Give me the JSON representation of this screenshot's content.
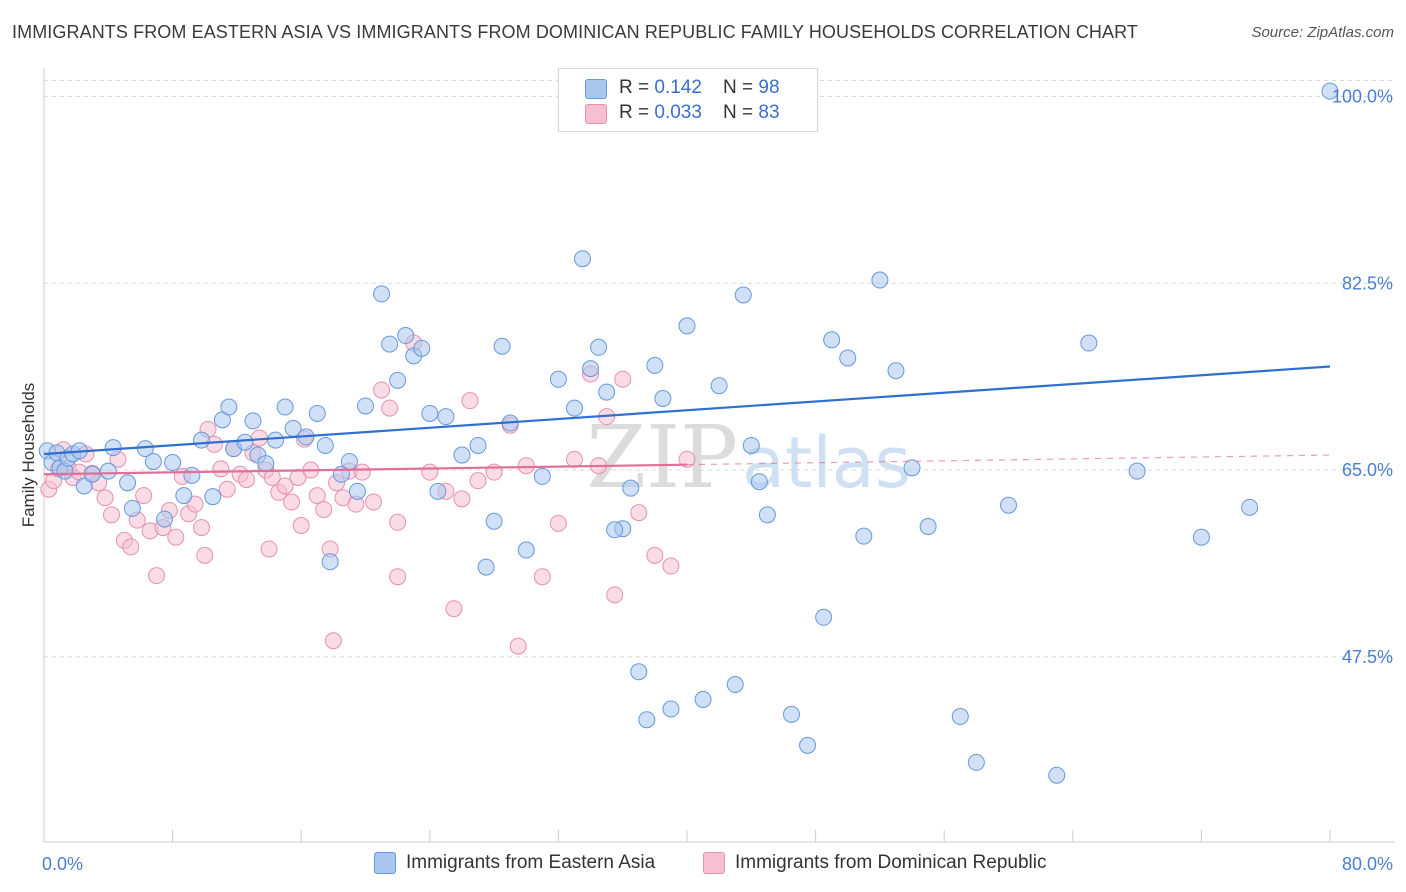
{
  "title": "IMMIGRANTS FROM EASTERN ASIA VS IMMIGRANTS FROM DOMINICAN REPUBLIC FAMILY HOUSEHOLDS CORRELATION CHART",
  "source": "Source: ZipAtlas.com",
  "legend_top": {
    "series1": {
      "r_label": "R = ",
      "r_value": "0.142",
      "n_label": "N = ",
      "n_value": "98"
    },
    "series2": {
      "r_label": "R = ",
      "r_value": "0.033",
      "n_label": "N = ",
      "n_value": "83"
    }
  },
  "legend_bottom": {
    "series1": "Immigrants from Eastern Asia",
    "series2": "Immigrants from Dominican Republic"
  },
  "colors": {
    "blue": "#6699dd",
    "blue_fill": "#a9c6ee",
    "blue_line": "#2f6fd0",
    "pink": "#e890b0",
    "pink_fill": "#f6bfd2",
    "pink_line": "#e0709a"
  },
  "chart_data": {
    "type": "scatter",
    "xlabel": "",
    "ylabel": "Family Households",
    "xlim": [
      0,
      80
    ],
    "ylim": [
      30,
      100
    ],
    "x_tick_labels": [
      "0.0%",
      "80.0%"
    ],
    "y_ticks": [
      47.5,
      65.0,
      82.5,
      100.0
    ],
    "y_tick_labels": [
      "47.5%",
      "65.0%",
      "82.5%",
      "100.0%"
    ],
    "watermark": "ZIPatlas",
    "series": [
      {
        "name": "Immigrants from Eastern Asia",
        "trend": {
          "x": [
            0,
            80
          ],
          "y": [
            66.5,
            74.7
          ]
        },
        "points": [
          [
            0.2,
            66.8
          ],
          [
            0.5,
            65.7
          ],
          [
            0.8,
            66.6
          ],
          [
            1.0,
            65.2
          ],
          [
            1.3,
            64.9
          ],
          [
            1.5,
            66.1
          ],
          [
            1.8,
            66.5
          ],
          [
            2.2,
            66.8
          ],
          [
            2.5,
            63.5
          ],
          [
            3.0,
            64.6
          ],
          [
            4.0,
            64.9
          ],
          [
            4.3,
            67.1
          ],
          [
            5.2,
            63.8
          ],
          [
            5.5,
            61.4
          ],
          [
            6.3,
            67.0
          ],
          [
            6.8,
            65.8
          ],
          [
            7.5,
            60.4
          ],
          [
            8.0,
            65.7
          ],
          [
            8.7,
            62.6
          ],
          [
            9.2,
            64.5
          ],
          [
            9.8,
            67.8
          ],
          [
            10.5,
            62.5
          ],
          [
            11.1,
            69.7
          ],
          [
            11.5,
            70.9
          ],
          [
            11.8,
            67.0
          ],
          [
            12.5,
            67.6
          ],
          [
            13.0,
            69.6
          ],
          [
            13.3,
            66.4
          ],
          [
            13.8,
            65.6
          ],
          [
            14.4,
            67.8
          ],
          [
            15.0,
            70.9
          ],
          [
            15.5,
            68.9
          ],
          [
            16.3,
            68.1
          ],
          [
            17.0,
            70.3
          ],
          [
            17.5,
            67.3
          ],
          [
            17.8,
            56.4
          ],
          [
            18.5,
            64.6
          ],
          [
            19.0,
            65.8
          ],
          [
            19.5,
            63.0
          ],
          [
            20.0,
            71.0
          ],
          [
            21.0,
            81.5
          ],
          [
            21.5,
            76.8
          ],
          [
            22.0,
            73.4
          ],
          [
            22.5,
            77.6
          ],
          [
            23.0,
            75.7
          ],
          [
            23.5,
            76.4
          ],
          [
            24.0,
            70.3
          ],
          [
            24.5,
            63.0
          ],
          [
            25.0,
            70.0
          ],
          [
            26.0,
            66.4
          ],
          [
            27.0,
            67.3
          ],
          [
            27.5,
            55.9
          ],
          [
            28.0,
            60.2
          ],
          [
            28.5,
            76.6
          ],
          [
            29.0,
            69.4
          ],
          [
            30.0,
            57.5
          ],
          [
            31.0,
            64.4
          ],
          [
            32.0,
            73.5
          ],
          [
            33.0,
            70.8
          ],
          [
            33.5,
            84.8
          ],
          [
            34.0,
            74.5
          ],
          [
            34.5,
            76.5
          ],
          [
            35.0,
            72.3
          ],
          [
            36.0,
            59.5
          ],
          [
            36.5,
            63.3
          ],
          [
            37.0,
            46.1
          ],
          [
            37.5,
            41.6
          ],
          [
            38.0,
            74.8
          ],
          [
            38.5,
            71.7
          ],
          [
            39.0,
            42.6
          ],
          [
            40.0,
            78.5
          ],
          [
            41.0,
            43.5
          ],
          [
            42.0,
            72.9
          ],
          [
            43.0,
            44.9
          ],
          [
            43.5,
            81.4
          ],
          [
            44.0,
            67.3
          ],
          [
            44.5,
            63.9
          ],
          [
            45.0,
            60.8
          ],
          [
            46.5,
            42.1
          ],
          [
            47.5,
            39.2
          ],
          [
            48.5,
            51.2
          ],
          [
            49.0,
            77.2
          ],
          [
            50.0,
            75.5
          ],
          [
            51.0,
            58.8
          ],
          [
            52.0,
            82.8
          ],
          [
            53.0,
            74.3
          ],
          [
            54.0,
            65.2
          ],
          [
            55.0,
            59.7
          ],
          [
            57.0,
            41.9
          ],
          [
            58.0,
            37.6
          ],
          [
            60.0,
            61.7
          ],
          [
            63.0,
            36.4
          ],
          [
            65.0,
            76.9
          ],
          [
            68.0,
            64.9
          ],
          [
            72.0,
            58.7
          ],
          [
            75.0,
            61.5
          ],
          [
            80.0,
            100.5
          ],
          [
            35.5,
            59.4
          ]
        ]
      },
      {
        "name": "Immigrants from Dominican Republic",
        "trend": {
          "x": [
            0,
            40
          ],
          "y": [
            64.6,
            65.5
          ],
          "dashed_to": {
            "x": 80,
            "y": 66.4
          }
        },
        "points": [
          [
            0.3,
            63.2
          ],
          [
            0.6,
            64.0
          ],
          [
            0.9,
            65.1
          ],
          [
            1.2,
            66.9
          ],
          [
            1.5,
            65.2
          ],
          [
            1.8,
            64.3
          ],
          [
            2.2,
            64.8
          ],
          [
            2.6,
            66.5
          ],
          [
            3.0,
            64.7
          ],
          [
            3.4,
            63.8
          ],
          [
            3.8,
            62.4
          ],
          [
            4.2,
            60.8
          ],
          [
            4.6,
            66.0
          ],
          [
            5.0,
            58.4
          ],
          [
            5.4,
            57.8
          ],
          [
            5.8,
            60.3
          ],
          [
            6.2,
            62.6
          ],
          [
            6.6,
            59.3
          ],
          [
            7.0,
            55.1
          ],
          [
            7.4,
            59.6
          ],
          [
            7.8,
            61.2
          ],
          [
            8.2,
            58.7
          ],
          [
            8.6,
            64.4
          ],
          [
            9.0,
            60.9
          ],
          [
            9.4,
            61.8
          ],
          [
            9.8,
            59.6
          ],
          [
            10.2,
            68.8
          ],
          [
            10.6,
            67.4
          ],
          [
            11.0,
            65.1
          ],
          [
            11.4,
            63.2
          ],
          [
            11.8,
            67.0
          ],
          [
            12.2,
            64.6
          ],
          [
            12.6,
            64.1
          ],
          [
            13.0,
            66.6
          ],
          [
            13.4,
            68.0
          ],
          [
            13.8,
            65.0
          ],
          [
            14.2,
            64.3
          ],
          [
            14.6,
            62.9
          ],
          [
            15.0,
            63.5
          ],
          [
            15.4,
            62.0
          ],
          [
            15.8,
            64.3
          ],
          [
            16.2,
            67.9
          ],
          [
            16.6,
            65.0
          ],
          [
            17.0,
            62.6
          ],
          [
            17.4,
            61.3
          ],
          [
            17.8,
            57.6
          ],
          [
            18.2,
            63.8
          ],
          [
            18.6,
            62.4
          ],
          [
            19.0,
            64.9
          ],
          [
            19.4,
            61.8
          ],
          [
            19.8,
            64.8
          ],
          [
            20.5,
            62.0
          ],
          [
            21.0,
            72.5
          ],
          [
            21.5,
            70.8
          ],
          [
            22.0,
            60.1
          ],
          [
            23.0,
            76.9
          ],
          [
            24.0,
            64.8
          ],
          [
            25.0,
            63.0
          ],
          [
            26.0,
            62.3
          ],
          [
            27.0,
            64.0
          ],
          [
            28.0,
            64.8
          ],
          [
            29.0,
            69.2
          ],
          [
            30.0,
            65.4
          ],
          [
            31.0,
            55.0
          ],
          [
            32.0,
            60.0
          ],
          [
            33.0,
            66.0
          ],
          [
            34.0,
            74.0
          ],
          [
            35.0,
            70.0
          ],
          [
            36.0,
            73.5
          ],
          [
            37.0,
            61.0
          ],
          [
            38.0,
            57.0
          ],
          [
            39.0,
            56.0
          ],
          [
            40.0,
            66.0
          ],
          [
            18.0,
            49.0
          ],
          [
            22.0,
            55.0
          ],
          [
            10.0,
            57.0
          ],
          [
            14.0,
            57.6
          ],
          [
            16.0,
            59.8
          ],
          [
            25.5,
            52.0
          ],
          [
            29.5,
            48.5
          ],
          [
            35.5,
            53.3
          ],
          [
            26.5,
            71.5
          ],
          [
            34.5,
            65.4
          ]
        ]
      }
    ]
  }
}
